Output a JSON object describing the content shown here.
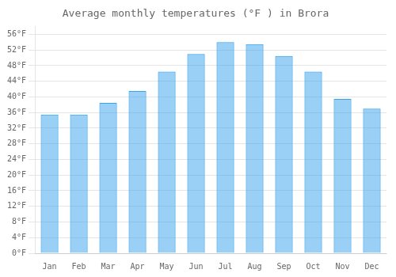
{
  "chart_data": {
    "type": "bar",
    "title": "Average monthly temperatures (°F ) in Brora",
    "categories": [
      "Jan",
      "Feb",
      "Mar",
      "Apr",
      "May",
      "Jun",
      "Jul",
      "Aug",
      "Sep",
      "Oct",
      "Nov",
      "Dec"
    ],
    "values": [
      35.5,
      35.5,
      38.5,
      41.5,
      46.5,
      51.0,
      54.0,
      53.5,
      50.5,
      46.5,
      39.5,
      37.0
    ],
    "ylim": [
      0,
      58
    ],
    "yticks": [
      {
        "value": 0,
        "label": "0°F"
      },
      {
        "value": 4,
        "label": "4°F"
      },
      {
        "value": 8,
        "label": "8°F"
      },
      {
        "value": 12,
        "label": "12°F"
      },
      {
        "value": 16,
        "label": "16°F"
      },
      {
        "value": 20,
        "label": "20°F"
      },
      {
        "value": 24,
        "label": "24°F"
      },
      {
        "value": 28,
        "label": "28°F"
      },
      {
        "value": 32,
        "label": "32°F"
      },
      {
        "value": 36,
        "label": "36°F"
      },
      {
        "value": 40,
        "label": "40°F"
      },
      {
        "value": 44,
        "label": "44°F"
      },
      {
        "value": 48,
        "label": "48°F"
      },
      {
        "value": 52,
        "label": "52°F"
      },
      {
        "value": 56,
        "label": "56°F"
      }
    ],
    "grid": true
  }
}
